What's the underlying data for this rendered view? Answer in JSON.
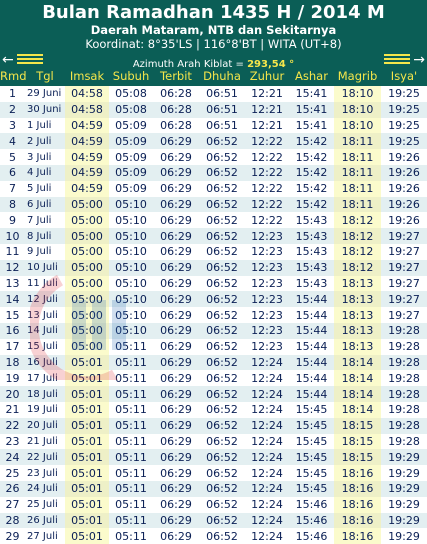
{
  "header": {
    "title": "Bulan Ramadhan 1435 H / 2014 M",
    "region": "Daerah Mataram, NTB dan Sekitarnya",
    "coordinates": "Koordinat: 8°35'LS | 116°8'BT | WITA (UT+8)",
    "kiblat_label": "Azimuth Arah Kiblat = ",
    "kiblat_value": "293,54 °",
    "nav_prev_icon": "←",
    "nav_next_icon": "→"
  },
  "columns": [
    "Rmd",
    "Tgl",
    "Imsak",
    "Subuh",
    "Terbit",
    "Dhuha",
    "Zuhur",
    "Ashar",
    "Magrib",
    "Isya'"
  ],
  "rows": [
    [
      "1",
      "29 Juni",
      "04:58",
      "05:08",
      "06:28",
      "06:51",
      "12:21",
      "15:41",
      "18:10",
      "19:25"
    ],
    [
      "2",
      "30 Juni",
      "04:58",
      "05:08",
      "06:28",
      "06:51",
      "12:21",
      "15:41",
      "18:10",
      "19:25"
    ],
    [
      "3",
      "1 Juli",
      "04:59",
      "05:09",
      "06:28",
      "06:51",
      "12:21",
      "15:41",
      "18:10",
      "19:25"
    ],
    [
      "4",
      "2 Juli",
      "04:59",
      "05:09",
      "06:29",
      "06:52",
      "12:22",
      "15:42",
      "18:11",
      "19:25"
    ],
    [
      "5",
      "3 Juli",
      "04:59",
      "05:09",
      "06:29",
      "06:52",
      "12:22",
      "15:42",
      "18:11",
      "19:26"
    ],
    [
      "6",
      "4 Juli",
      "04:59",
      "05:09",
      "06:29",
      "06:52",
      "12:22",
      "15:42",
      "18:11",
      "19:26"
    ],
    [
      "7",
      "5 Juli",
      "04:59",
      "05:09",
      "06:29",
      "06:52",
      "12:22",
      "15:42",
      "18:11",
      "19:26"
    ],
    [
      "8",
      "6 Juli",
      "05:00",
      "05:10",
      "06:29",
      "06:52",
      "12:22",
      "15:42",
      "18:11",
      "19:26"
    ],
    [
      "9",
      "7 Juli",
      "05:00",
      "05:10",
      "06:29",
      "06:52",
      "12:22",
      "15:43",
      "18:12",
      "19:26"
    ],
    [
      "10",
      "8 Juli",
      "05:00",
      "05:10",
      "06:29",
      "06:52",
      "12:23",
      "15:43",
      "18:12",
      "19:27"
    ],
    [
      "11",
      "9 Juli",
      "05:00",
      "05:10",
      "06:29",
      "06:52",
      "12:23",
      "15:43",
      "18:12",
      "19:27"
    ],
    [
      "12",
      "10 Juli",
      "05:00",
      "05:10",
      "06:29",
      "06:52",
      "12:23",
      "15:43",
      "18:12",
      "19:27"
    ],
    [
      "13",
      "11 Juli",
      "05:00",
      "05:10",
      "06:29",
      "06:52",
      "12:23",
      "15:43",
      "18:13",
      "19:27"
    ],
    [
      "14",
      "12 Juli",
      "05:00",
      "05:10",
      "06:29",
      "06:52",
      "12:23",
      "15:44",
      "18:13",
      "19:27"
    ],
    [
      "15",
      "13 Juli",
      "05:00",
      "05:10",
      "06:29",
      "06:52",
      "12:23",
      "15:44",
      "18:13",
      "19:27"
    ],
    [
      "16",
      "14 Juli",
      "05:00",
      "05:10",
      "06:29",
      "06:52",
      "12:23",
      "15:44",
      "18:13",
      "19:28"
    ],
    [
      "17",
      "15 Juli",
      "05:00",
      "05:11",
      "06:29",
      "06:52",
      "12:23",
      "15:44",
      "18:13",
      "19:28"
    ],
    [
      "18",
      "16 Juli",
      "05:01",
      "05:11",
      "06:29",
      "06:52",
      "12:24",
      "15:44",
      "18:14",
      "19:28"
    ],
    [
      "19",
      "17 Juli",
      "05:01",
      "05:11",
      "06:29",
      "06:52",
      "12:24",
      "15:44",
      "18:14",
      "19:28"
    ],
    [
      "20",
      "18 Juli",
      "05:01",
      "05:11",
      "06:29",
      "06:52",
      "12:24",
      "15:44",
      "18:14",
      "19:28"
    ],
    [
      "21",
      "19 Juli",
      "05:01",
      "05:11",
      "06:29",
      "06:52",
      "12:24",
      "15:45",
      "18:14",
      "19:28"
    ],
    [
      "22",
      "20 Juli",
      "05:01",
      "05:11",
      "06:29",
      "06:52",
      "12:24",
      "15:45",
      "18:15",
      "19:28"
    ],
    [
      "23",
      "21 Juli",
      "05:01",
      "05:11",
      "06:29",
      "06:52",
      "12:24",
      "15:45",
      "18:15",
      "19:28"
    ],
    [
      "24",
      "22 Juli",
      "05:01",
      "05:11",
      "06:29",
      "06:52",
      "12:24",
      "15:45",
      "18:15",
      "19:29"
    ],
    [
      "25",
      "23 Juli",
      "05:01",
      "05:11",
      "06:29",
      "06:52",
      "12:24",
      "15:45",
      "18:16",
      "19:29"
    ],
    [
      "26",
      "24 Juli",
      "05:01",
      "05:11",
      "06:29",
      "06:52",
      "12:24",
      "15:45",
      "18:16",
      "19:29"
    ],
    [
      "27",
      "25 Juli",
      "05:01",
      "05:11",
      "06:29",
      "06:52",
      "12:24",
      "15:46",
      "18:16",
      "19:29"
    ],
    [
      "28",
      "26 Juli",
      "05:01",
      "05:11",
      "06:29",
      "06:52",
      "12:24",
      "15:46",
      "18:16",
      "19:29"
    ],
    [
      "29",
      "27 Juli",
      "05:01",
      "05:11",
      "06:29",
      "06:52",
      "12:24",
      "15:46",
      "18:16",
      "19:29"
    ]
  ],
  "colors": {
    "header_bg": "#0b5e56",
    "column_label": "#f5e64b",
    "cell_text": "#0a1f55",
    "highlight_column": "#fbfbcc",
    "stripe": "#e3eff1"
  }
}
